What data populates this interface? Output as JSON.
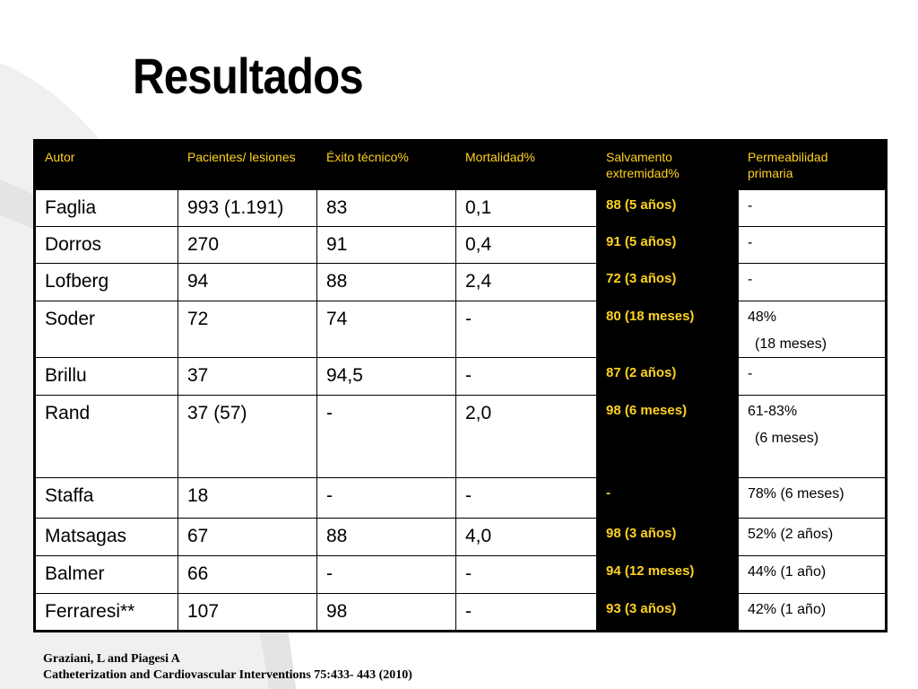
{
  "title": "Resultados",
  "table": {
    "headers": [
      "Autor",
      "Pacientes/ lesiones",
      "Éxito técnico%",
      "Mortalidad%",
      "Salvamento extremidad%",
      "Permeabilidad primaria"
    ],
    "rows": [
      {
        "autor": "Faglia",
        "pacientes": "993 (1.191)",
        "exito": "83",
        "mortalidad": "0,1",
        "salvamento": "88 (5 años)",
        "permeabilidad": "-",
        "permeabilidad2": ""
      },
      {
        "autor": "Dorros",
        "pacientes": "270",
        "exito": "91",
        "mortalidad": "0,4",
        "salvamento": "91 (5 años)",
        "permeabilidad": "-",
        "permeabilidad2": ""
      },
      {
        "autor": "Lofberg",
        "pacientes": "94",
        "exito": "88",
        "mortalidad": "2,4",
        "salvamento": "72 (3 años)",
        "permeabilidad": "-",
        "permeabilidad2": ""
      },
      {
        "autor": "Soder",
        "pacientes": "72",
        "exito": "74",
        "mortalidad": "-",
        "salvamento": "80 (18 meses)",
        "permeabilidad": "48%",
        "permeabilidad2": "(18 meses)"
      },
      {
        "autor": "Brillu",
        "pacientes": "37",
        "exito": "94,5",
        "mortalidad": "-",
        "salvamento": "87 (2 años)",
        "permeabilidad": "-",
        "permeabilidad2": ""
      },
      {
        "autor": "Rand",
        "pacientes": "37 (57)",
        "exito": "-",
        "mortalidad": "2,0",
        "salvamento": "98 (6 meses)",
        "permeabilidad": "61-83%",
        "permeabilidad2": "(6 meses)"
      },
      {
        "autor": "Staffa",
        "pacientes": "18",
        "exito": "-",
        "mortalidad": "-",
        "salvamento": "-",
        "permeabilidad": "78% (6 meses)",
        "permeabilidad2": ""
      },
      {
        "autor": "Matsagas",
        "pacientes": "67",
        "exito": "88",
        "mortalidad": "4,0",
        "salvamento": "98 (3 años)",
        "permeabilidad": "52% (2 años)",
        "permeabilidad2": ""
      },
      {
        "autor": "Balmer",
        "pacientes": "66",
        "exito": "-",
        "mortalidad": "-",
        "salvamento": "94 (12 meses)",
        "permeabilidad": "44% (1 año)",
        "permeabilidad2": ""
      },
      {
        "autor": "Ferraresi**",
        "pacientes": "107",
        "exito": "98",
        "mortalidad": "-",
        "salvamento": "93 (3 años)",
        "permeabilidad": "42% (1 año)",
        "permeabilidad2": ""
      }
    ]
  },
  "reference": {
    "line1": "Graziani, L and Piagesi A",
    "line2": "Catheterization and Cardiovascular Interventions 75:433- 443 (2010)"
  },
  "colors": {
    "header_bg": "#000000",
    "header_text": "#ffd21f",
    "swoosh": "#e6e6e6"
  }
}
